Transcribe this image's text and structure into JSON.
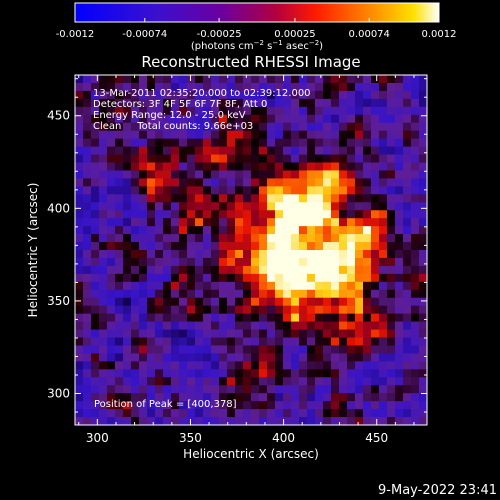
{
  "colorbar": {
    "tick_labels": [
      "-0.0012",
      "-0.00074",
      "-0.00025",
      "0.00025",
      "0.00074",
      "0.0012"
    ],
    "tick_values": [
      -0.0012,
      -0.00074,
      -0.00025,
      0.00025,
      0.00074,
      0.0012
    ],
    "range": [
      -0.0012,
      0.0012
    ],
    "colormap": [
      "#0000ff",
      "#5a00b4",
      "#8e0038",
      "#ff2000",
      "#ff9a00",
      "#ffffff"
    ]
  },
  "footer": {
    "date": "9-May-2022 23:41"
  },
  "chart_data": {
    "type": "heatmap",
    "title": "Reconstructed RHESSI Image",
    "xlabel": "Heliocentric X (arcsec)",
    "ylabel": "Heliocentric Y (arcsec)",
    "xlim": [
      288,
      477
    ],
    "ylim": [
      283,
      472
    ],
    "xticks": [
      300,
      350,
      400,
      450
    ],
    "yticks": [
      300,
      350,
      400,
      450
    ],
    "units": "(photons cm⁻² s⁻¹ asec⁻²)",
    "colorbar_range": [
      -0.0012,
      0.0012
    ],
    "annotations": [
      "13-Mar-2011 02:35:20.000 to 02:39:12.000",
      "Detectors: 3F 4F 5F 6F 7F 8F, Att 0",
      "Energy Range: 12.0 - 25.0 keV",
      "Clean     Total counts: 9.66e+03"
    ],
    "peak_label": "Position of Peak = [400,378]",
    "peak": [
      400,
      378
    ]
  }
}
